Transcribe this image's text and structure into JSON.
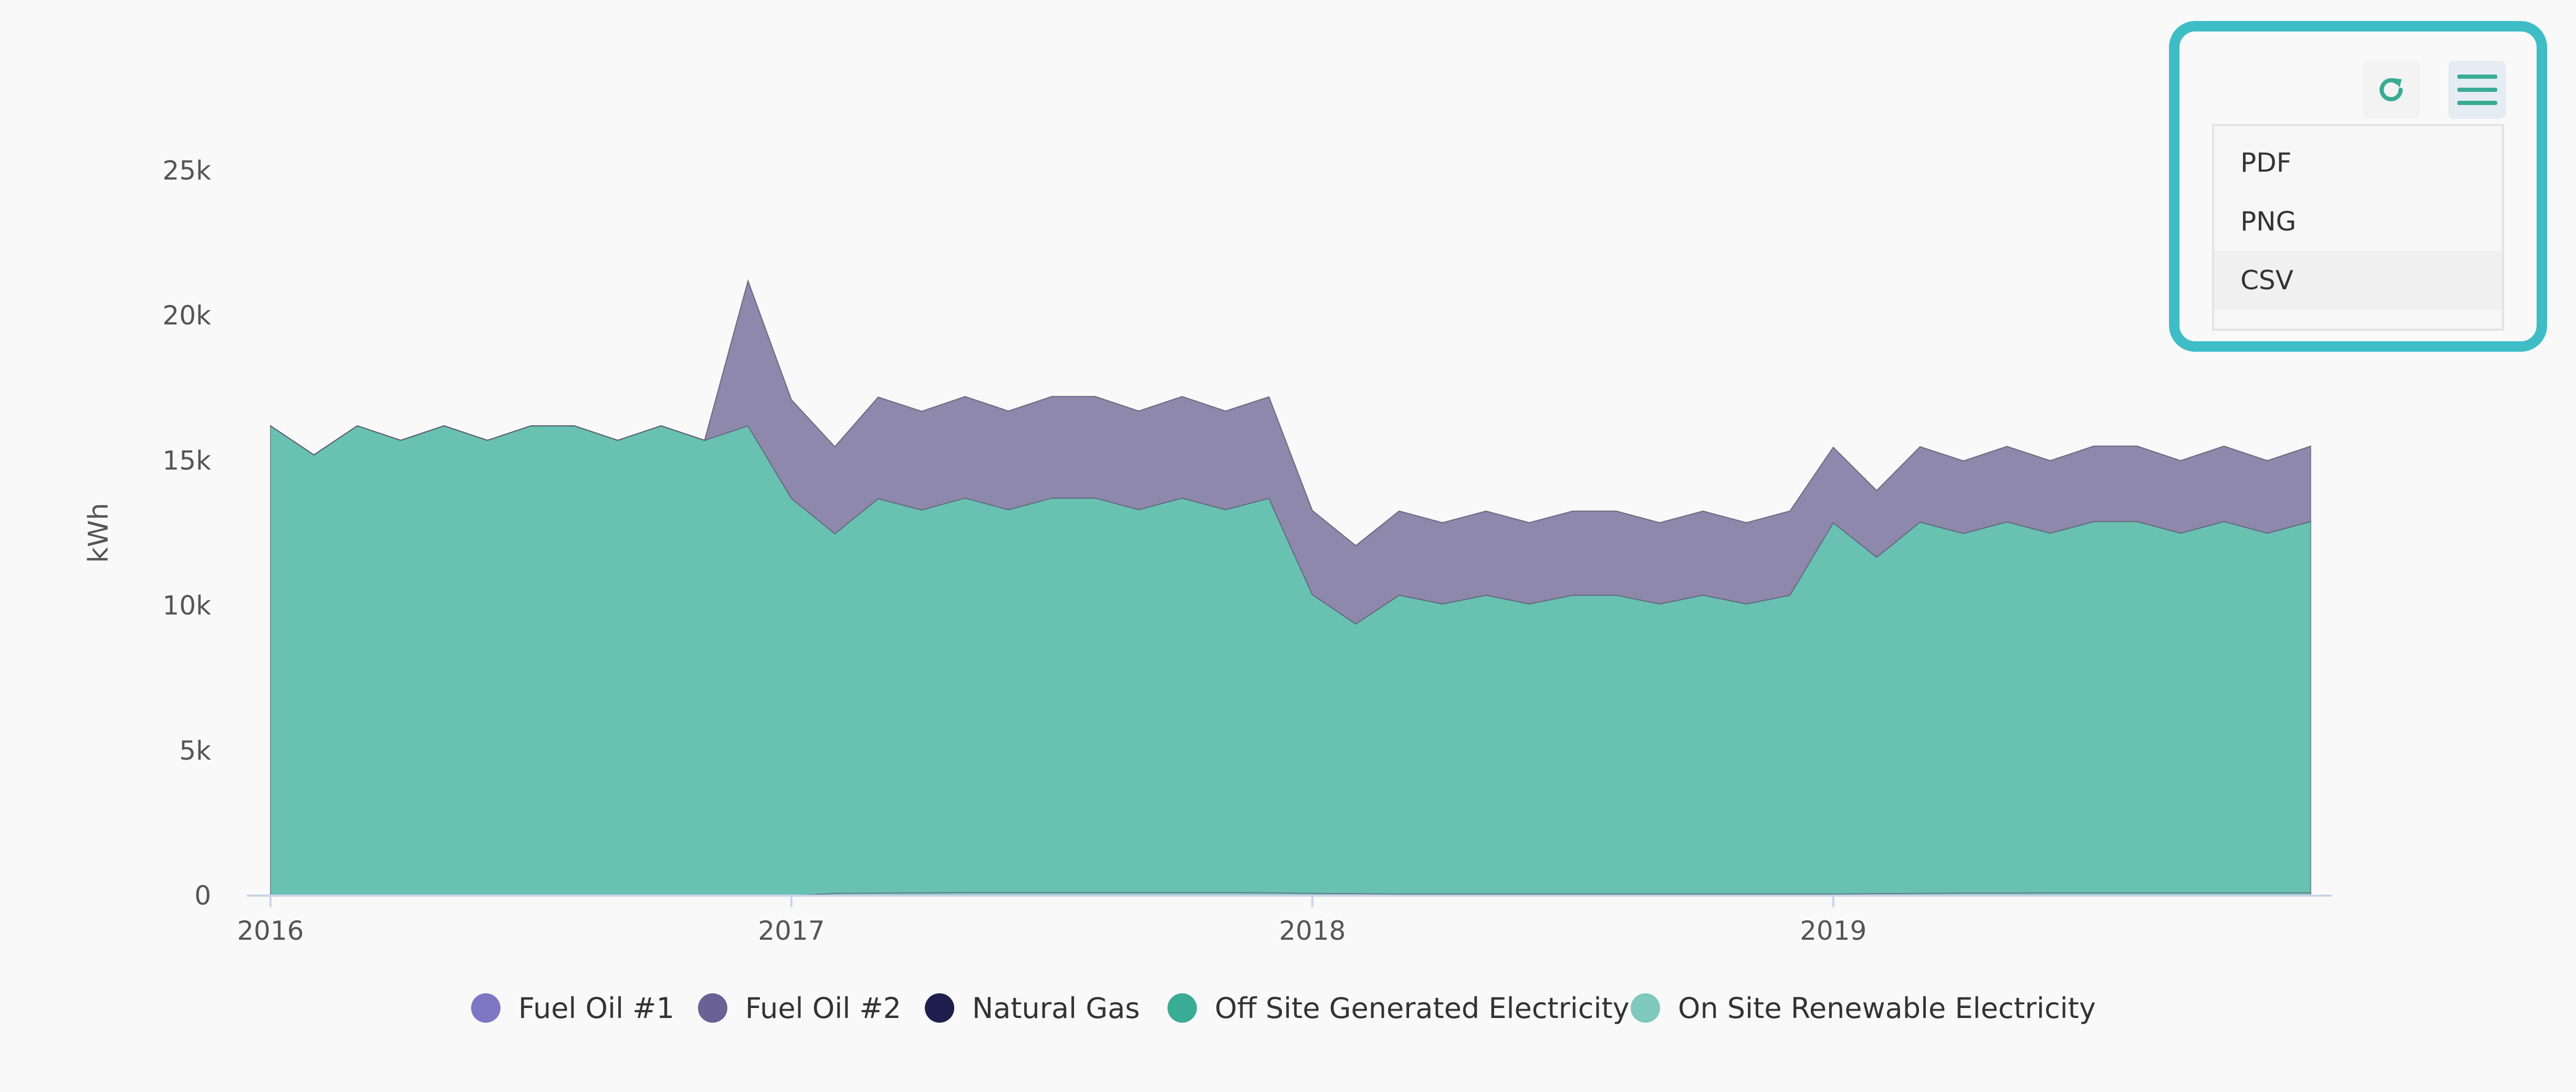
{
  "chart_data": {
    "type": "area",
    "stacked": true,
    "ylabel": "kWh",
    "xlabel": "",
    "ylim": [
      0,
      25000
    ],
    "y_ticks": [
      0,
      5000,
      10000,
      15000,
      20000,
      25000
    ],
    "y_tick_labels": [
      "0",
      "5k",
      "10k",
      "15k",
      "20k",
      "25k"
    ],
    "x_ticks": [
      "2016-01",
      "2017-01",
      "2018-01",
      "2019-01"
    ],
    "x_tick_labels": [
      "2016",
      "2017",
      "2018",
      "2019"
    ],
    "x": [
      "2016-01",
      "2016-02",
      "2016-03",
      "2016-04",
      "2016-05",
      "2016-06",
      "2016-07",
      "2016-08",
      "2016-09",
      "2016-10",
      "2016-11",
      "2016-12",
      "2017-01",
      "2017-02",
      "2017-03",
      "2017-04",
      "2017-05",
      "2017-06",
      "2017-07",
      "2017-08",
      "2017-09",
      "2017-10",
      "2017-11",
      "2017-12",
      "2018-01",
      "2018-02",
      "2018-03",
      "2018-04",
      "2018-05",
      "2018-06",
      "2018-07",
      "2018-08",
      "2018-09",
      "2018-10",
      "2018-11",
      "2018-12",
      "2019-01",
      "2019-02",
      "2019-03",
      "2019-04",
      "2019-05",
      "2019-06",
      "2019-07",
      "2019-08",
      "2019-09",
      "2019-10",
      "2019-11",
      "2019-12"
    ],
    "grid": false,
    "legend_position": "bottom",
    "series": [
      {
        "name": "On Site Renewable Electricity",
        "color": "#7ec8bd",
        "values": [
          0,
          0,
          0,
          0,
          0,
          0,
          0,
          0,
          0,
          0,
          0,
          0,
          0,
          80,
          90,
          100,
          110,
          110,
          110,
          110,
          110,
          110,
          110,
          100,
          80,
          70,
          60,
          60,
          60,
          60,
          60,
          60,
          60,
          60,
          60,
          60,
          60,
          70,
          80,
          90,
          90,
          100,
          100,
          100,
          100,
          100,
          100,
          100
        ]
      },
      {
        "name": "Off Site Generated Electricity",
        "color": "#69c1b1",
        "values": [
          16200,
          15200,
          16200,
          15700,
          16200,
          15700,
          16200,
          16200,
          15700,
          16200,
          15700,
          16200,
          13700,
          12400,
          13600,
          13200,
          13600,
          13200,
          13600,
          13600,
          13200,
          13600,
          13200,
          13600,
          10300,
          9300,
          10300,
          10000,
          10300,
          10000,
          10300,
          10300,
          10000,
          10300,
          10000,
          10300,
          12800,
          11600,
          12800,
          12400,
          12800,
          12400,
          12800,
          12800,
          12400,
          12800,
          12400,
          12800
        ]
      },
      {
        "name": "Natural Gas",
        "color": "#1e1e4f",
        "values": [
          0,
          0,
          0,
          0,
          0,
          0,
          0,
          0,
          0,
          0,
          0,
          0,
          0,
          0,
          0,
          0,
          0,
          0,
          0,
          0,
          0,
          0,
          0,
          0,
          0,
          0,
          0,
          0,
          0,
          0,
          0,
          0,
          0,
          0,
          0,
          0,
          0,
          0,
          0,
          0,
          0,
          0,
          0,
          0,
          0,
          0,
          0,
          0
        ]
      },
      {
        "name": "Fuel Oil #2",
        "color": "#8e88ac",
        "values": [
          0,
          0,
          0,
          0,
          0,
          0,
          0,
          0,
          0,
          0,
          0,
          5000,
          3400,
          3000,
          3500,
          3400,
          3500,
          3400,
          3500,
          3500,
          3400,
          3500,
          3400,
          3500,
          2900,
          2700,
          2900,
          2800,
          2900,
          2800,
          2900,
          2900,
          2800,
          2900,
          2800,
          2900,
          2600,
          2300,
          2600,
          2500,
          2600,
          2500,
          2600,
          2600,
          2500,
          2600,
          2500,
          2600
        ]
      },
      {
        "name": "Fuel Oil #1",
        "color": "#7d76c2",
        "values": [
          0,
          0,
          0,
          0,
          0,
          0,
          0,
          0,
          0,
          0,
          0,
          0,
          0,
          0,
          0,
          0,
          0,
          0,
          0,
          0,
          0,
          0,
          0,
          0,
          0,
          0,
          0,
          0,
          0,
          0,
          0,
          0,
          0,
          0,
          0,
          0,
          0,
          0,
          0,
          0,
          0,
          0,
          0,
          0,
          0,
          0,
          0,
          0
        ]
      }
    ],
    "legend": [
      {
        "label": "Fuel Oil #1",
        "color": "#7d76c2"
      },
      {
        "label": "Fuel Oil #2",
        "color": "#6a6294"
      },
      {
        "label": "Natural Gas",
        "color": "#1e1e4f"
      },
      {
        "label": "Off Site Generated Electricity",
        "color": "#3aab94"
      },
      {
        "label": "On Site Renewable Electricity",
        "color": "#7ec8bd"
      }
    ]
  },
  "export_menu": {
    "items": [
      "PDF",
      "PNG",
      "CSV"
    ],
    "hovered_item": "CSV",
    "refresh_icon": "refresh-icon",
    "menu_icon": "hamburger-menu-icon",
    "highlight_color": "#3ebdc6",
    "icon_color": "#3aab94"
  }
}
